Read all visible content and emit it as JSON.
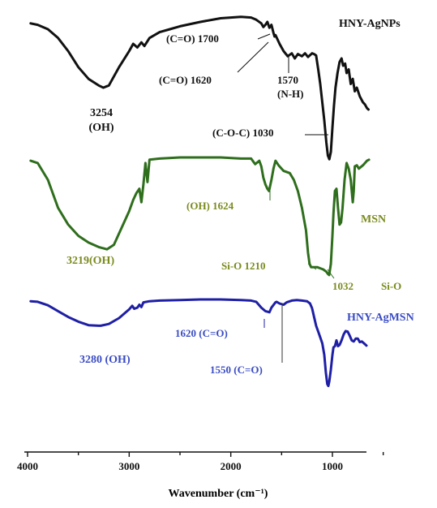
{
  "chart_data": {
    "type": "line",
    "xlabel": "Wavenumber (cm⁻¹)",
    "ylabel": "",
    "xlim": [
      4000,
      500
    ],
    "x_reversed": true,
    "y_axis_shown": false,
    "grid": false,
    "x_ticks": [
      {
        "value": 4000,
        "label": "4000"
      },
      {
        "value": 3000,
        "label": "3000"
      },
      {
        "value": 2000,
        "label": "2000"
      },
      {
        "value": 1000,
        "label": "1000"
      }
    ],
    "y_scale": "relative transmittance, curves vertically offset",
    "series": [
      {
        "name": "HNY-AgNPs",
        "color": "#111111",
        "label_color": "#111111",
        "points": [
          [
            3970,
            0.88
          ],
          [
            3900,
            0.86
          ],
          [
            3800,
            0.8
          ],
          [
            3700,
            0.68
          ],
          [
            3600,
            0.5
          ],
          [
            3500,
            0.28
          ],
          [
            3400,
            0.12
          ],
          [
            3300,
            0.03
          ],
          [
            3254,
            0.0
          ],
          [
            3200,
            0.03
          ],
          [
            3100,
            0.28
          ],
          [
            3000,
            0.5
          ],
          [
            2960,
            0.6
          ],
          [
            2920,
            0.55
          ],
          [
            2880,
            0.62
          ],
          [
            2850,
            0.57
          ],
          [
            2800,
            0.68
          ],
          [
            2700,
            0.76
          ],
          [
            2600,
            0.8
          ],
          [
            2500,
            0.84
          ],
          [
            2300,
            0.9
          ],
          [
            2100,
            0.95
          ],
          [
            1900,
            0.97
          ],
          [
            1800,
            0.96
          ],
          [
            1750,
            0.93
          ],
          [
            1700,
            0.88
          ],
          [
            1680,
            0.83
          ],
          [
            1660,
            0.86
          ],
          [
            1640,
            0.9
          ],
          [
            1620,
            0.82
          ],
          [
            1600,
            0.86
          ],
          [
            1580,
            0.75
          ],
          [
            1570,
            0.7
          ],
          [
            1560,
            0.72
          ],
          [
            1520,
            0.6
          ],
          [
            1480,
            0.5
          ],
          [
            1440,
            0.43
          ],
          [
            1400,
            0.47
          ],
          [
            1370,
            0.4
          ],
          [
            1340,
            0.46
          ],
          [
            1300,
            0.43
          ],
          [
            1270,
            0.47
          ],
          [
            1240,
            0.42
          ],
          [
            1200,
            0.47
          ],
          [
            1180,
            0.46
          ],
          [
            1160,
            0.44
          ],
          [
            1140,
            0.25
          ],
          [
            1120,
            0.05
          ],
          [
            1100,
            -0.2
          ],
          [
            1080,
            -0.45
          ],
          [
            1060,
            -0.75
          ],
          [
            1045,
            -0.93
          ],
          [
            1030,
            -0.98
          ],
          [
            1015,
            -0.88
          ],
          [
            1000,
            -0.55
          ],
          [
            985,
            -0.25
          ],
          [
            970,
            0.0
          ],
          [
            950,
            0.2
          ],
          [
            930,
            0.35
          ],
          [
            910,
            0.4
          ],
          [
            895,
            0.3
          ],
          [
            875,
            0.33
          ],
          [
            860,
            0.2
          ],
          [
            840,
            0.25
          ],
          [
            820,
            0.05
          ],
          [
            800,
            0.12
          ],
          [
            780,
            -0.05
          ],
          [
            760,
            0.0
          ],
          [
            730,
            -0.12
          ],
          [
            700,
            -0.2
          ],
          [
            680,
            -0.23
          ],
          [
            660,
            -0.28
          ],
          [
            645,
            -0.3
          ]
        ]
      },
      {
        "name": "MSN",
        "color": "#2e6e1c",
        "label_color": "#7b8a1e",
        "points": [
          [
            3970,
            0.97
          ],
          [
            3900,
            0.95
          ],
          [
            3800,
            0.8
          ],
          [
            3700,
            0.55
          ],
          [
            3600,
            0.4
          ],
          [
            3500,
            0.3
          ],
          [
            3400,
            0.24
          ],
          [
            3300,
            0.2
          ],
          [
            3219,
            0.18
          ],
          [
            3150,
            0.22
          ],
          [
            3100,
            0.32
          ],
          [
            3000,
            0.52
          ],
          [
            2960,
            0.62
          ],
          [
            2930,
            0.68
          ],
          [
            2900,
            0.72
          ],
          [
            2880,
            0.6
          ],
          [
            2860,
            0.76
          ],
          [
            2840,
            0.95
          ],
          [
            2820,
            0.78
          ],
          [
            2800,
            0.98
          ],
          [
            2700,
            0.99
          ],
          [
            2500,
            1.0
          ],
          [
            2300,
            1.0
          ],
          [
            2100,
            1.0
          ],
          [
            1900,
            0.99
          ],
          [
            1800,
            0.99
          ],
          [
            1760,
            0.94
          ],
          [
            1720,
            0.97
          ],
          [
            1700,
            0.92
          ],
          [
            1680,
            0.82
          ],
          [
            1660,
            0.76
          ],
          [
            1640,
            0.72
          ],
          [
            1624,
            0.7
          ],
          [
            1600,
            0.8
          ],
          [
            1580,
            0.9
          ],
          [
            1560,
            0.97
          ],
          [
            1530,
            0.93
          ],
          [
            1480,
            0.88
          ],
          [
            1420,
            0.86
          ],
          [
            1380,
            0.8
          ],
          [
            1340,
            0.7
          ],
          [
            1300,
            0.55
          ],
          [
            1260,
            0.35
          ],
          [
            1240,
            0.15
          ],
          [
            1225,
            0.05
          ],
          [
            1210,
            0.02
          ],
          [
            1180,
            0.02
          ],
          [
            1150,
            0.02
          ],
          [
            1120,
            0.01
          ],
          [
            1090,
            0.0
          ],
          [
            1060,
            -0.02
          ],
          [
            1045,
            -0.04
          ],
          [
            1032,
            -0.05
          ],
          [
            1015,
            0.05
          ],
          [
            1000,
            0.3
          ],
          [
            990,
            0.5
          ],
          [
            975,
            0.7
          ],
          [
            960,
            0.72
          ],
          [
            945,
            0.55
          ],
          [
            930,
            0.4
          ],
          [
            915,
            0.42
          ],
          [
            900,
            0.55
          ],
          [
            880,
            0.8
          ],
          [
            860,
            0.95
          ],
          [
            840,
            0.9
          ],
          [
            820,
            0.8
          ],
          [
            800,
            0.6
          ],
          [
            790,
            0.7
          ],
          [
            780,
            0.92
          ],
          [
            760,
            0.93
          ],
          [
            740,
            0.9
          ],
          [
            700,
            0.93
          ],
          [
            660,
            0.97
          ],
          [
            640,
            0.98
          ]
        ]
      },
      {
        "name": "HNY-AgMSN",
        "color": "#1f1fa6",
        "label_color": "#3a4cc4",
        "points": [
          [
            3970,
            0.97
          ],
          [
            3900,
            0.96
          ],
          [
            3800,
            0.9
          ],
          [
            3700,
            0.8
          ],
          [
            3600,
            0.7
          ],
          [
            3500,
            0.62
          ],
          [
            3400,
            0.56
          ],
          [
            3300,
            0.55
          ],
          [
            3280,
            0.55
          ],
          [
            3200,
            0.58
          ],
          [
            3100,
            0.68
          ],
          [
            3000,
            0.83
          ],
          [
            2970,
            0.89
          ],
          [
            2950,
            0.84
          ],
          [
            2920,
            0.86
          ],
          [
            2900,
            0.91
          ],
          [
            2880,
            0.87
          ],
          [
            2860,
            0.95
          ],
          [
            2800,
            0.97
          ],
          [
            2700,
            0.98
          ],
          [
            2500,
            0.99
          ],
          [
            2300,
            1.0
          ],
          [
            2100,
            1.0
          ],
          [
            1900,
            0.99
          ],
          [
            1800,
            0.98
          ],
          [
            1750,
            0.96
          ],
          [
            1700,
            0.86
          ],
          [
            1660,
            0.8
          ],
          [
            1640,
            0.79
          ],
          [
            1620,
            0.78
          ],
          [
            1600,
            0.86
          ],
          [
            1560,
            0.95
          ],
          [
            1550,
            0.96
          ],
          [
            1520,
            0.93
          ],
          [
            1480,
            0.91
          ],
          [
            1450,
            0.95
          ],
          [
            1400,
            0.98
          ],
          [
            1350,
            0.99
          ],
          [
            1300,
            0.98
          ],
          [
            1250,
            0.97
          ],
          [
            1220,
            0.93
          ],
          [
            1200,
            0.85
          ],
          [
            1180,
            0.7
          ],
          [
            1160,
            0.55
          ],
          [
            1140,
            0.45
          ],
          [
            1120,
            0.35
          ],
          [
            1100,
            0.25
          ],
          [
            1080,
            0.05
          ],
          [
            1065,
            -0.25
          ],
          [
            1050,
            -0.45
          ],
          [
            1040,
            -0.48
          ],
          [
            1030,
            -0.4
          ],
          [
            1015,
            -0.2
          ],
          [
            1000,
            0.05
          ],
          [
            990,
            0.18
          ],
          [
            975,
            0.2
          ],
          [
            960,
            0.3
          ],
          [
            945,
            0.2
          ],
          [
            930,
            0.22
          ],
          [
            910,
            0.3
          ],
          [
            890,
            0.4
          ],
          [
            870,
            0.46
          ],
          [
            850,
            0.45
          ],
          [
            830,
            0.38
          ],
          [
            810,
            0.3
          ],
          [
            790,
            0.28
          ],
          [
            770,
            0.33
          ],
          [
            750,
            0.33
          ],
          [
            730,
            0.27
          ],
          [
            710,
            0.28
          ],
          [
            690,
            0.25
          ],
          [
            665,
            0.21
          ]
        ]
      }
    ],
    "annotations": [
      {
        "series": "HNY-AgNPs",
        "text": "HNY-AgNPs",
        "role": "legend"
      },
      {
        "series": "HNY-AgNPs",
        "text": "(C=O)  1700",
        "x": 1700
      },
      {
        "series": "HNY-AgNPs",
        "text": "(C=O) 1620",
        "x": 1620
      },
      {
        "series": "HNY-AgNPs",
        "text": "1570",
        "x": 1570
      },
      {
        "series": "HNY-AgNPs",
        "text": "(N-H)",
        "x": 1570
      },
      {
        "series": "HNY-AgNPs",
        "text": "3254",
        "x": 3254
      },
      {
        "series": "HNY-AgNPs",
        "text": "(OH)",
        "x": 3254
      },
      {
        "series": "HNY-AgNPs",
        "text": "(C-O-C) 1030",
        "x": 1030
      },
      {
        "series": "MSN",
        "text": "MSN",
        "role": "legend"
      },
      {
        "series": "MSN",
        "text": "(OH) 1624",
        "x": 1624
      },
      {
        "series": "MSN",
        "text": "3219(OH)",
        "x": 3219
      },
      {
        "series": "MSN",
        "text": "Si-O  1210",
        "x": 1210
      },
      {
        "series": "MSN",
        "text": "1032",
        "x": 1032
      },
      {
        "series": "MSN",
        "text": "Si-O",
        "x": 1032
      },
      {
        "series": "HNY-AgMSN",
        "text": "HNY-AgMSN",
        "role": "legend"
      },
      {
        "series": "HNY-AgMSN",
        "text": "1620 (C=O)",
        "x": 1620
      },
      {
        "series": "HNY-AgMSN",
        "text": "1550 (C=O)",
        "x": 1550
      },
      {
        "series": "HNY-AgMSN",
        "text": "3280 (OH)",
        "x": 3280
      }
    ]
  }
}
